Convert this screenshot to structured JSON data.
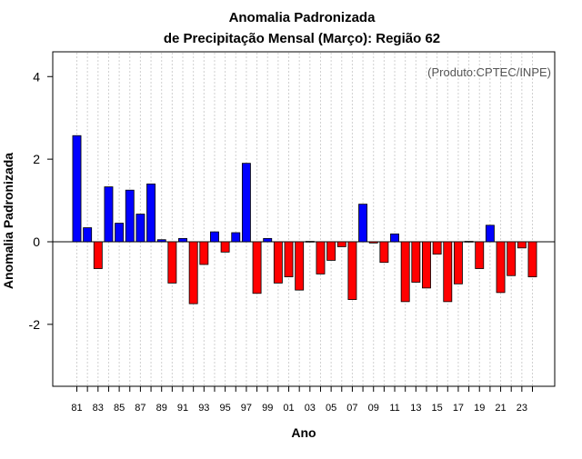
{
  "chart_data": {
    "type": "bar",
    "title_line1": "Anomalia Padronizada",
    "title_line2": "de Precipitação Mensal (Março): Região 62",
    "source_note": "(Produto:CPTEC/INPE)",
    "xlabel": "Ano",
    "ylabel": "Anomalia Padronizada",
    "ylim": [
      -3.5,
      4.6
    ],
    "yticks": [
      "-2",
      "0",
      "2",
      "4"
    ],
    "ytick_values": [
      -2,
      0,
      2,
      4
    ],
    "categories": [
      "1981",
      "1982",
      "1983",
      "1984",
      "1985",
      "1986",
      "1987",
      "1988",
      "1989",
      "1990",
      "1991",
      "1992",
      "1993",
      "1994",
      "1995",
      "1996",
      "1997",
      "1998",
      "1999",
      "2000",
      "2001",
      "2002",
      "2003",
      "2004",
      "2005",
      "2006",
      "2007",
      "2008",
      "2009",
      "2010",
      "2011",
      "2012",
      "2013",
      "2014",
      "2015",
      "2016",
      "2017",
      "2018",
      "2019",
      "2020",
      "2021",
      "2022",
      "2023",
      "2024"
    ],
    "xtick_labels": [
      "81",
      "",
      "83",
      "",
      "85",
      "",
      "87",
      "",
      "89",
      "",
      "91",
      "",
      "93",
      "",
      "95",
      "",
      "97",
      "",
      "99",
      "",
      "01",
      "",
      "03",
      "",
      "05",
      "",
      "07",
      "",
      "09",
      "",
      "11",
      "",
      "13",
      "",
      "15",
      "",
      "17",
      "",
      "19",
      "",
      "21",
      "",
      "23",
      ""
    ],
    "values": [
      2.57,
      0.34,
      -0.65,
      1.33,
      0.45,
      1.25,
      0.67,
      1.4,
      0.05,
      -1.0,
      0.08,
      -1.5,
      -0.55,
      0.24,
      -0.25,
      0.22,
      1.9,
      -1.25,
      0.08,
      -1.0,
      -0.85,
      -1.17,
      0.01,
      -0.78,
      -0.45,
      -0.12,
      -1.4,
      0.91,
      -0.03,
      -0.5,
      0.19,
      -1.45,
      -0.98,
      -1.12,
      -0.3,
      -1.45,
      -1.02,
      0.01,
      -0.65,
      0.4,
      -1.23,
      -0.82,
      -0.15,
      -0.85
    ],
    "positive_color": "#0000ff",
    "negative_color": "#ff0000",
    "grid": "vertical dotted",
    "zero_line": true
  }
}
